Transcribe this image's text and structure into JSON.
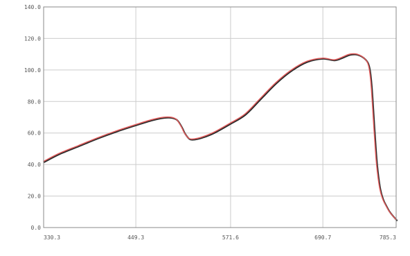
{
  "chart_data": {
    "type": "line",
    "title": "",
    "xlabel": "",
    "ylabel": "",
    "xlim": [
      330.3,
      785.3
    ],
    "ylim": [
      0.0,
      140.0
    ],
    "grid": true,
    "x_ticks": [
      330.3,
      449.3,
      571.6,
      690.7,
      785.3
    ],
    "x_tick_labels": [
      "330.3",
      "449.3",
      "571.6",
      "690.7",
      "785.3"
    ],
    "y_ticks": [
      0,
      20,
      40,
      60,
      80,
      100,
      120,
      140
    ],
    "y_tick_labels": [
      "0.0",
      "20.0",
      "40.0",
      "60.0",
      "80.0",
      "100.0",
      "120.0",
      "140.0"
    ],
    "colors": {
      "line": "#e05b5b",
      "shadow": "#2b2b2b",
      "grid": "#cccccc",
      "axis": "#888888"
    },
    "series": [
      {
        "x": [
          330.3,
          350,
          375,
          400,
          425,
          450,
          470,
          485,
          495,
          502,
          508,
          512,
          518,
          525,
          535,
          550,
          570,
          590,
          610,
          630,
          650,
          670,
          690,
          705,
          715,
          725,
          735,
          745,
          750,
          753,
          757,
          760,
          764,
          768,
          772,
          776,
          780,
          785.3
        ],
        "y": [
          42,
          47,
          52,
          57,
          61.5,
          65.5,
          68.5,
          70.0,
          70.0,
          68.5,
          64.0,
          60.0,
          56.5,
          56.3,
          57.5,
          60.5,
          66.0,
          72.0,
          82.0,
          92.0,
          100.0,
          105.5,
          107.5,
          106.5,
          108.0,
          110.0,
          110.0,
          107.0,
          102.0,
          90.0,
          60.0,
          40.0,
          25.0,
          18.0,
          14.0,
          10.5,
          8.0,
          5.0
        ]
      }
    ]
  }
}
